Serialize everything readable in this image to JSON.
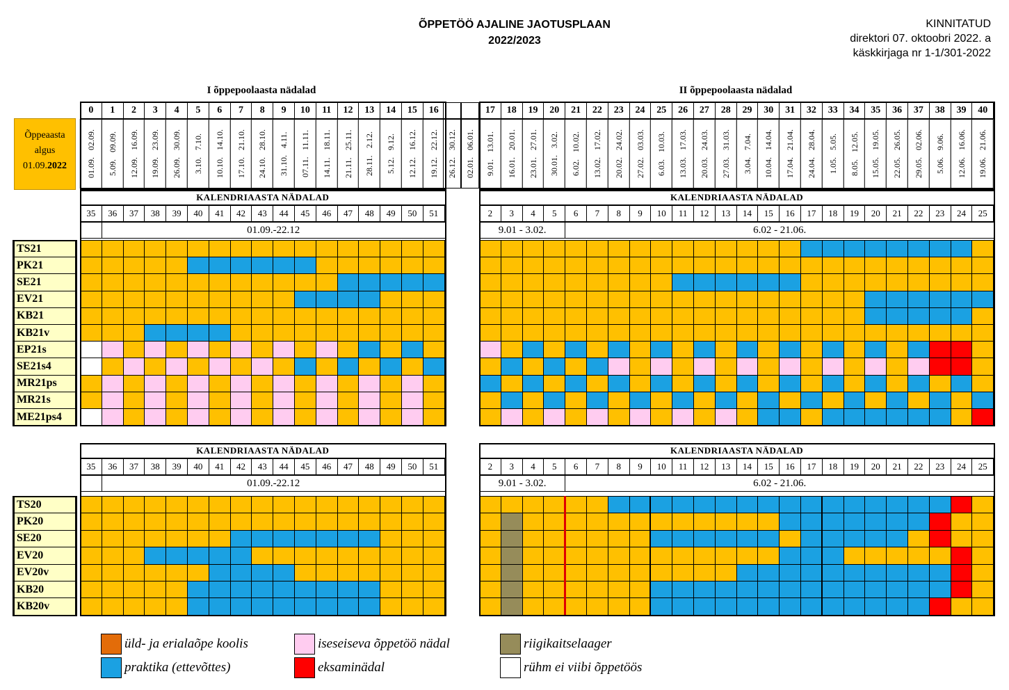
{
  "header": {
    "title": "ÕPPETÖÖ AJALINE JAOTUSPLAAN",
    "year": "2022/2023",
    "approval": [
      "KINNITATUD",
      "direktori 07. oktoobri 2022. a",
      "käskkirjaga nr 1-1/301-2022"
    ]
  },
  "start_box": {
    "line1": "Õppeaasta",
    "line2": "algus",
    "line3_prefix": "01.09.",
    "line3_year": "2022"
  },
  "semesters": {
    "first": "I õppepoolaasta nädalad",
    "second": "II õppepoolaasta nädalad"
  },
  "weeks_first": [
    "0",
    "1",
    "2",
    "3",
    "4",
    "5",
    "6",
    "7",
    "8",
    "9",
    "10",
    "11",
    "12",
    "13",
    "14",
    "15",
    "16"
  ],
  "weeks_second": [
    "17",
    "18",
    "19",
    "20",
    "21",
    "22",
    "23",
    "24",
    "25",
    "26",
    "27",
    "28",
    "29",
    "30",
    "31",
    "32",
    "33",
    "34",
    "35",
    "36",
    "37",
    "38",
    "39",
    "40"
  ],
  "dates_first": [
    [
      "01.09.",
      "02.09."
    ],
    [
      "5.09.",
      "09.09."
    ],
    [
      "12.09.",
      "16.09."
    ],
    [
      "19.09.",
      "23.09."
    ],
    [
      "26.09.",
      "30.09."
    ],
    [
      "3.10.",
      "7.10."
    ],
    [
      "10.10.",
      "14.10."
    ],
    [
      "17.10.",
      "21.10."
    ],
    [
      "24.10.",
      "28.10."
    ],
    [
      "31.10.",
      "4.11."
    ],
    [
      "07.11.",
      "11.11."
    ],
    [
      "14.11.",
      "18.11."
    ],
    [
      "21.11.",
      "25.11."
    ],
    [
      "28.11.",
      "2.12."
    ],
    [
      "5.12.",
      "9.12."
    ],
    [
      "12.12.",
      "16.12."
    ],
    [
      "19.12.",
      "22.12."
    ]
  ],
  "dates_break": [
    [
      "26.12.",
      "30.12."
    ],
    [
      "02.01.",
      "06.01."
    ]
  ],
  "dates_second": [
    [
      "9.01.",
      "13.01."
    ],
    [
      "16.01.",
      "20.01."
    ],
    [
      "23.01.",
      "27.01."
    ],
    [
      "30.01.",
      "3.02."
    ],
    [
      "6.02.",
      "10.02."
    ],
    [
      "13.02.",
      "17.02."
    ],
    [
      "20.02.",
      "24.02."
    ],
    [
      "27.02.",
      "03.03."
    ],
    [
      "6.03.",
      "10.03."
    ],
    [
      "13.03.",
      "17.03."
    ],
    [
      "20.03.",
      "24.03."
    ],
    [
      "27.03.",
      "31.03."
    ],
    [
      "3.04.",
      "7.04."
    ],
    [
      "10.04.",
      "14.04."
    ],
    [
      "17.04.",
      "21.04."
    ],
    [
      "24.04.",
      "28.04."
    ],
    [
      "1.05.",
      "5.05."
    ],
    [
      "8.05.",
      "12.05."
    ],
    [
      "15.05.",
      "19.05."
    ],
    [
      "22.05.",
      "26.05."
    ],
    [
      "29.05.",
      "02.06."
    ],
    [
      "5.06.",
      "9.06."
    ],
    [
      "12.06.",
      "16.06."
    ],
    [
      "19.06.",
      "21.06."
    ]
  ],
  "calendar_heading": "KALENDRIAASTA   NÄDALAD",
  "cal_weeks_first": [
    "35",
    "36",
    "37",
    "38",
    "39",
    "40",
    "41",
    "42",
    "43",
    "44",
    "45",
    "46",
    "47",
    "48",
    "49",
    "50",
    "51"
  ],
  "cal_weeks_second": [
    "2",
    "3",
    "4",
    "5",
    "6",
    "7",
    "8",
    "9",
    "10",
    "11",
    "12",
    "13",
    "14",
    "15",
    "16",
    "17",
    "18",
    "19",
    "20",
    "21",
    "22",
    "23",
    "24",
    "25"
  ],
  "period_first": "01.09.-22.12",
  "period_second_a": "9.01 - 3.02.",
  "period_second_b": "6.02 - 21.06.",
  "table1": [
    {
      "g": "TS21",
      "a": "ooooooooooooooooo",
      "b": "ooooooooooooooobbbbbbbbo"
    },
    {
      "g": "PK21",
      "a": "ooooobbbbbboooooo",
      "b": "oooooooooooooooooooooooo"
    },
    {
      "g": "SE21",
      "a": "oooooooooooobbbbb",
      "b": "ooooooooobbbbbbooooooooo"
    },
    {
      "g": "EV21",
      "a": "oooooooooobbbbooo",
      "b": "oooooooooooooooooobbbbbb"
    },
    {
      "g": "KB21",
      "a": "ooooooooooooooooo",
      "b": "oooooooooooooooooobbbbbo"
    },
    {
      "g": "KB21v",
      "a": "ooobbbboooooooooo",
      "b": "oooooooooooooooooooooooo"
    },
    {
      "g": "EP21s",
      "a": "wpopopopopopobobo",
      "b": "pobobobobobobobobobobrro"
    },
    {
      "g": "SE21s4",
      "a": "wopopopopobobobob",
      "b": "obobobpopopopopopopoprro"
    },
    {
      "g": "MR21ps",
      "a": "opopopopopopopopo",
      "b": "bobobobobobobobobobobobo"
    },
    {
      "g": "MR21s",
      "a": "opopopopopopopopo",
      "b": "obobobobobobobobobobobob"
    },
    {
      "g": "ME21ps4",
      "a": "wpopopopopopopopo",
      "b": "opopopopopopobbobbbbbbor"
    }
  ],
  "table2": [
    {
      "g": "TS20",
      "a": "ooooooooooooooooo",
      "b": "oooooobbbbbbbbbbbbbbbbro"
    },
    {
      "g": "PK20",
      "a": "ooooooooooooooooo",
      "b": "ogoooooooooooobbbbbbbroo"
    },
    {
      "g": "SE20",
      "a": "ooooooobbbbbbbooo",
      "b": "ogoooooobbbbbbobbbbboroo"
    },
    {
      "g": "EV20",
      "a": "ooobbbbbooooooooo",
      "b": "ogoooooooooooobbboooooro"
    },
    {
      "g": "EV20v",
      "a": "oooooobbbbooooooo",
      "b": "ogoooooooooobbbbbbbbbbro"
    },
    {
      "g": "KB20",
      "a": "ooooobbbbbbbbbooo",
      "b": "ogoooooobbbbbbbbbbbbbbro"
    },
    {
      "g": "KB20v",
      "a": "ooooobbbbbbbbbooo",
      "b": "ogoooooobbbbbbbbbbbbbroo"
    }
  ],
  "legend": [
    {
      "label": "üld- ja erialaõpe koolis",
      "color": "#e36c09",
      "icon": "orange-swatch"
    },
    {
      "label": "iseseiseva õppetöö nädal",
      "color": "#ffccf0",
      "icon": "pink-swatch"
    },
    {
      "label": "riigikaitselaager",
      "color": "#968c5a",
      "icon": "olive-swatch"
    },
    {
      "label": "praktika (ettevõttes)",
      "color": "#1ba1e2",
      "icon": "blue-swatch"
    },
    {
      "label": "eksaminädal",
      "color": "#ff0000",
      "icon": "red-swatch"
    },
    {
      "label": "rühm ei viibi õppetöös",
      "color": "#ffffff",
      "icon": "white-swatch"
    }
  ]
}
